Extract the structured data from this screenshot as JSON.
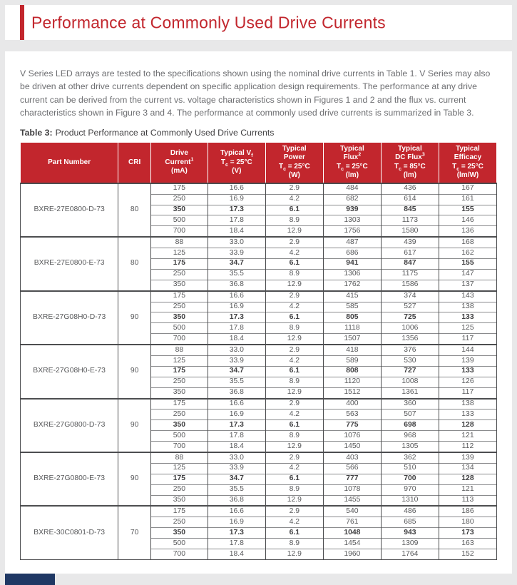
{
  "colors": {
    "accent_red": "#c2262d",
    "page_bg": "#e8e8e9",
    "body_text": "#6d6e71",
    "table_text": "#58595b",
    "border": "#4d4e50",
    "footer_navy": "#1f3864"
  },
  "header": {
    "title": "Performance at Commonly Used Drive Currents"
  },
  "intro": "V Series LED arrays are tested to the specifications shown using the nominal drive currents in Table 1. V Series may also be driven at other drive currents dependent on specific application design requirements. The performance at any drive current can be derived from the current vs. voltage characteristics shown in Figures 1 and 2 and the flux vs. current characteristics shown in Figure 3 and 4. The performance at commonly used drive currents is summarized in Table 3.",
  "table": {
    "caption_label": "Table 3:",
    "caption_text": "Product Performance at Commonly Used Drive Currents",
    "columns": [
      {
        "key": "part-number",
        "lines": [
          [
            {
              "t": "Part Number"
            }
          ]
        ]
      },
      {
        "key": "cri",
        "lines": [
          [
            {
              "t": "CRI"
            }
          ]
        ]
      },
      {
        "key": "drive-current",
        "lines": [
          [
            {
              "t": "Drive"
            }
          ],
          [
            {
              "t": "Current"
            },
            {
              "t": "1",
              "s": "sup"
            }
          ],
          [
            {
              "t": "(mA)"
            }
          ]
        ]
      },
      {
        "key": "typical-vf",
        "lines": [
          [
            {
              "t": "Typical V"
            },
            {
              "t": "f",
              "s": "sub"
            }
          ],
          [
            {
              "t": "T"
            },
            {
              "t": "c",
              "s": "sub"
            },
            {
              "t": " = 25°C"
            }
          ],
          [
            {
              "t": "(V)"
            }
          ]
        ]
      },
      {
        "key": "typical-power",
        "lines": [
          [
            {
              "t": "Typical"
            }
          ],
          [
            {
              "t": "Power"
            }
          ],
          [
            {
              "t": "T"
            },
            {
              "t": "c",
              "s": "sub"
            },
            {
              "t": " = 25°C"
            }
          ],
          [
            {
              "t": "(W)"
            }
          ]
        ]
      },
      {
        "key": "typical-flux",
        "lines": [
          [
            {
              "t": "Typical"
            }
          ],
          [
            {
              "t": "Flux"
            },
            {
              "t": "2",
              "s": "sup"
            }
          ],
          [
            {
              "t": "T"
            },
            {
              "t": "c",
              "s": "sub"
            },
            {
              "t": " = 25°C"
            }
          ],
          [
            {
              "t": "(lm)"
            }
          ]
        ]
      },
      {
        "key": "typical-dc-flux",
        "lines": [
          [
            {
              "t": "Typical"
            }
          ],
          [
            {
              "t": "DC Flux"
            },
            {
              "t": "3",
              "s": "sup"
            }
          ],
          [
            {
              "t": "T"
            },
            {
              "t": "c",
              "s": "sub"
            },
            {
              "t": " = 85°C"
            }
          ],
          [
            {
              "t": "(lm)"
            }
          ]
        ]
      },
      {
        "key": "typical-efficacy",
        "lines": [
          [
            {
              "t": "Typical"
            }
          ],
          [
            {
              "t": "Efficacy"
            }
          ],
          [
            {
              "t": "T"
            },
            {
              "t": "c",
              "s": "sub"
            },
            {
              "t": " = 25°C"
            }
          ],
          [
            {
              "t": "(lm/W)"
            }
          ]
        ]
      }
    ],
    "groups": [
      {
        "part": "BXRE-27E0800-D-73",
        "cri": "80",
        "bold_row": 2,
        "rows": [
          [
            "175",
            "16.6",
            "2.9",
            "484",
            "436",
            "167"
          ],
          [
            "250",
            "16.9",
            "4.2",
            "682",
            "614",
            "161"
          ],
          [
            "350",
            "17.3",
            "6.1",
            "939",
            "845",
            "155"
          ],
          [
            "500",
            "17.8",
            "8.9",
            "1303",
            "1173",
            "146"
          ],
          [
            "700",
            "18.4",
            "12.9",
            "1756",
            "1580",
            "136"
          ]
        ]
      },
      {
        "part": "BXRE-27E0800-E-73",
        "cri": "80",
        "bold_row": 2,
        "rows": [
          [
            "88",
            "33.0",
            "2.9",
            "487",
            "439",
            "168"
          ],
          [
            "125",
            "33.9",
            "4.2",
            "686",
            "617",
            "162"
          ],
          [
            "175",
            "34.7",
            "6.1",
            "941",
            "847",
            "155"
          ],
          [
            "250",
            "35.5",
            "8.9",
            "1306",
            "1175",
            "147"
          ],
          [
            "350",
            "36.8",
            "12.9",
            "1762",
            "1586",
            "137"
          ]
        ]
      },
      {
        "part": "BXRE-27G08H0-D-73",
        "cri": "90",
        "bold_row": 2,
        "rows": [
          [
            "175",
            "16.6",
            "2.9",
            "415",
            "374",
            "143"
          ],
          [
            "250",
            "16.9",
            "4.2",
            "585",
            "527",
            "138"
          ],
          [
            "350",
            "17.3",
            "6.1",
            "805",
            "725",
            "133"
          ],
          [
            "500",
            "17.8",
            "8.9",
            "1118",
            "1006",
            "125"
          ],
          [
            "700",
            "18.4",
            "12.9",
            "1507",
            "1356",
            "117"
          ]
        ]
      },
      {
        "part": "BXRE-27G08H0-E-73",
        "cri": "90",
        "bold_row": 2,
        "rows": [
          [
            "88",
            "33.0",
            "2.9",
            "418",
            "376",
            "144"
          ],
          [
            "125",
            "33.9",
            "4.2",
            "589",
            "530",
            "139"
          ],
          [
            "175",
            "34.7",
            "6.1",
            "808",
            "727",
            "133"
          ],
          [
            "250",
            "35.5",
            "8.9",
            "1120",
            "1008",
            "126"
          ],
          [
            "350",
            "36.8",
            "12.9",
            "1512",
            "1361",
            "117"
          ]
        ]
      },
      {
        "part": "BXRE-27G0800-D-73",
        "cri": "90",
        "bold_row": 2,
        "rows": [
          [
            "175",
            "16.6",
            "2.9",
            "400",
            "360",
            "138"
          ],
          [
            "250",
            "16.9",
            "4.2",
            "563",
            "507",
            "133"
          ],
          [
            "350",
            "17.3",
            "6.1",
            "775",
            "698",
            "128"
          ],
          [
            "500",
            "17.8",
            "8.9",
            "1076",
            "968",
            "121"
          ],
          [
            "700",
            "18.4",
            "12.9",
            "1450",
            "1305",
            "112"
          ]
        ]
      },
      {
        "part": "BXRE-27G0800-E-73",
        "cri": "90",
        "bold_row": 2,
        "rows": [
          [
            "88",
            "33.0",
            "2.9",
            "403",
            "362",
            "139"
          ],
          [
            "125",
            "33.9",
            "4.2",
            "566",
            "510",
            "134"
          ],
          [
            "175",
            "34.7",
            "6.1",
            "777",
            "700",
            "128"
          ],
          [
            "250",
            "35.5",
            "8.9",
            "1078",
            "970",
            "121"
          ],
          [
            "350",
            "36.8",
            "12.9",
            "1455",
            "1310",
            "113"
          ]
        ]
      },
      {
        "part": "BXRE-30C0801-D-73",
        "cri": "70",
        "bold_row": 2,
        "rows": [
          [
            "175",
            "16.6",
            "2.9",
            "540",
            "486",
            "186"
          ],
          [
            "250",
            "16.9",
            "4.2",
            "761",
            "685",
            "180"
          ],
          [
            "350",
            "17.3",
            "6.1",
            "1048",
            "943",
            "173"
          ],
          [
            "500",
            "17.8",
            "8.9",
            "1454",
            "1309",
            "163"
          ],
          [
            "700",
            "18.4",
            "12.9",
            "1960",
            "1764",
            "152"
          ]
        ]
      }
    ]
  }
}
